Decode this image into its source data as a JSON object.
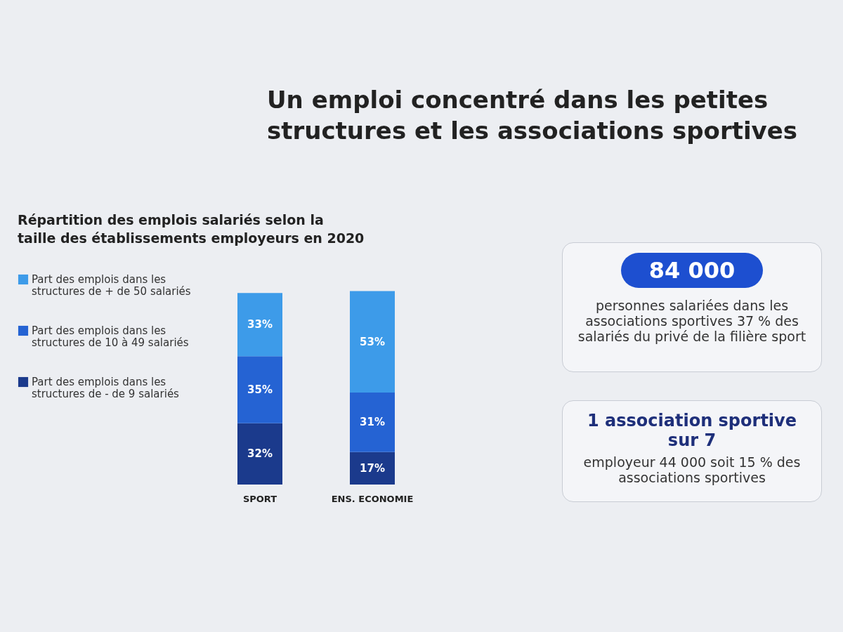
{
  "chart_data": {
    "type": "bar",
    "title": "Un emploi concentré dans les petites structures et les associations sportives",
    "subtitle": "Répartition des emplois salariés selon la taille des établissements employeurs en 2020",
    "categories": [
      "SPORT",
      "ENS. ECONOMIE"
    ],
    "stacked": true,
    "legend": "left",
    "data_labels": true,
    "series": [
      {
        "name": "Part des emplois dans les structures de - de 9 salariés",
        "color": "#1b3a8c",
        "values": [
          32,
          17
        ],
        "value_labels": [
          "32%",
          "17%"
        ]
      },
      {
        "name": "Part des emplois dans les structures de 10 à 49 salariés",
        "color": "#2563d3",
        "values": [
          35,
          31
        ],
        "value_labels": [
          "35%",
          "31%"
        ]
      },
      {
        "name": "Part des emplois dans les structures de + de 50 salariés",
        "color": "#3d9be9",
        "values": [
          33,
          53
        ],
        "value_labels": [
          "33%",
          "53%"
        ]
      }
    ],
    "annotations": [
      "84 000",
      "personnes salariées dans les associations sportives 37 % des salariés du privé de la filière sport",
      "1 association sportive sur 7",
      "employeur 44 000 soit 15 % des associations sportives"
    ]
  }
}
